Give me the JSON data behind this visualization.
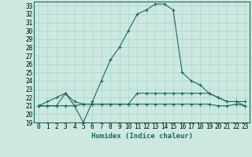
{
  "xlabel": "Humidex (Indice chaleur)",
  "bg_color": "#cce8e0",
  "line_color": "#1a6b5a",
  "grid_color": "#aad4cc",
  "x": [
    0,
    1,
    2,
    3,
    4,
    5,
    6,
    7,
    8,
    9,
    10,
    11,
    12,
    13,
    14,
    15,
    16,
    17,
    18,
    19,
    20,
    21,
    22,
    23
  ],
  "y_main": [
    21,
    21.5,
    22,
    22.5,
    21,
    19,
    21.5,
    24,
    26.5,
    28,
    30,
    32,
    32.5,
    33.2,
    33.2,
    32.5,
    25,
    24,
    23.5,
    22.5,
    22,
    21.5,
    21.5,
    21
  ],
  "y_mid": [
    21,
    21,
    21,
    22.5,
    21.5,
    21.2,
    21.2,
    21.2,
    21.2,
    21.2,
    21.2,
    22.5,
    22.5,
    22.5,
    22.5,
    22.5,
    22.5,
    22.5,
    22.5,
    22.5,
    22,
    21.5,
    21.5,
    21.5
  ],
  "y_bot": [
    21,
    21,
    21,
    21,
    21,
    21.2,
    21.2,
    21.2,
    21.2,
    21.2,
    21.2,
    21.2,
    21.2,
    21.2,
    21.2,
    21.2,
    21.2,
    21.2,
    21.2,
    21.2,
    21,
    21,
    21.2,
    21
  ],
  "ylim": [
    19,
    33.5
  ],
  "xlim": [
    -0.5,
    23.5
  ],
  "yticks": [
    19,
    20,
    21,
    22,
    23,
    24,
    25,
    26,
    27,
    28,
    29,
    30,
    31,
    32,
    33
  ],
  "xtick_labels": [
    "0",
    "1",
    "2",
    "3",
    "4",
    "5",
    "6",
    "7",
    "8",
    "9",
    "10",
    "11",
    "12",
    "13",
    "14",
    "15",
    "16",
    "17",
    "18",
    "19",
    "20",
    "21",
    "22",
    "23"
  ],
  "tick_fontsize": 5.5,
  "label_fontsize": 6.5
}
